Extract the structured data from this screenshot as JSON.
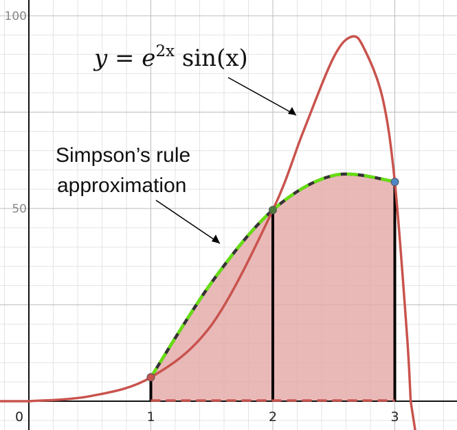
{
  "chart_data": {
    "type": "line",
    "title": "",
    "xlabel": "",
    "ylabel": "",
    "xlim": [
      0,
      3.55
    ],
    "ylim": [
      0,
      100
    ],
    "grid": true,
    "x_ticks": [
      {
        "value": 0,
        "label": "0"
      },
      {
        "value": 1,
        "label": "1"
      },
      {
        "value": 2,
        "label": "2"
      },
      {
        "value": 3,
        "label": "3"
      }
    ],
    "y_ticks": [
      {
        "value": 50,
        "label": "50"
      },
      {
        "value": 100,
        "label": "100"
      }
    ],
    "function_curve": {
      "x": [
        0,
        0.5,
        1,
        1.5,
        2,
        2.25,
        2.5,
        2.65,
        2.75,
        2.9,
        3,
        3.1,
        3.13
      ],
      "y": [
        0,
        1.3,
        6.2,
        19.9,
        49.6,
        70.0,
        89.3,
        94.6,
        91.4,
        78.6,
        56.9,
        17.0,
        0
      ]
    },
    "simpson_parabola": {
      "x": [
        1,
        1.5,
        2,
        2.5,
        3
      ],
      "y": [
        6.2,
        30.9,
        49.6,
        58.6,
        57.0
      ]
    },
    "sample_points": [
      {
        "x": 1,
        "y": 6.2
      },
      {
        "x": 2,
        "y": 49.6
      },
      {
        "x": 3,
        "y": 56.9
      }
    ],
    "annotations": [
      {
        "text": "y = e^{2x} sin(x)",
        "lines": [
          "y = e",
          "2x",
          " sin(x)"
        ]
      },
      {
        "text": "Simpson’s rule approximation",
        "lines": [
          "Simpson’s rule",
          "approximation"
        ]
      }
    ],
    "colors": {
      "curve": "#c9534d",
      "fill": "#e3a8a6",
      "parabola_dash": "#66dd11",
      "parabola_under": "#333333",
      "ordinate": "#000000",
      "point_1": "#c9534d",
      "point_2": "#4c7a3a",
      "point_3": "#4f86c6",
      "grid_major": "#bbbbbb",
      "grid_minor": "#e3e3e3"
    }
  }
}
